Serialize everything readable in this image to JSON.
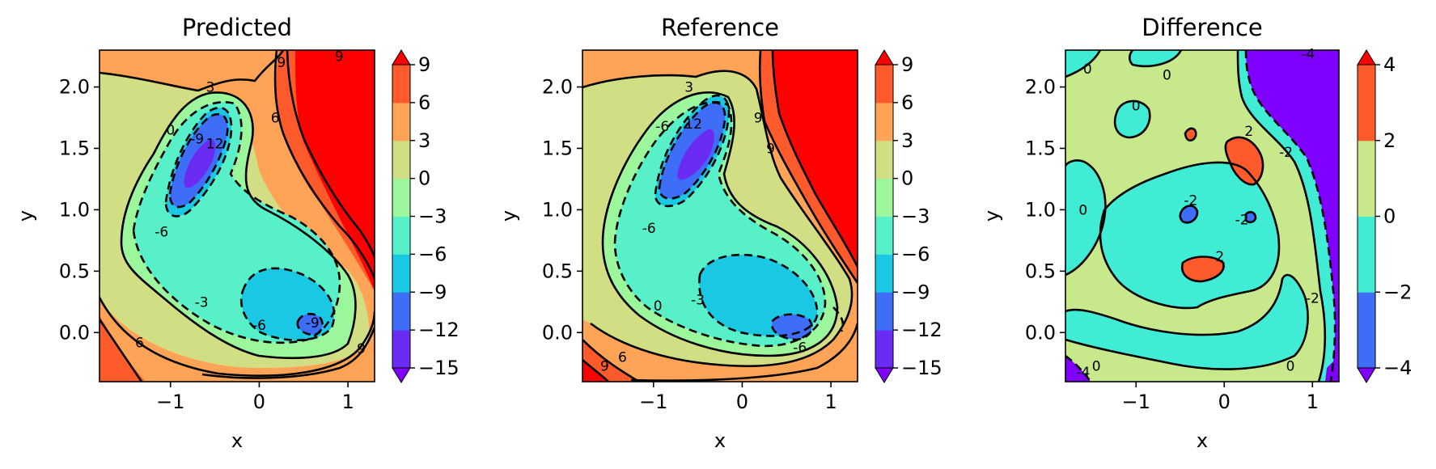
{
  "chart_data": [
    {
      "type": "contour",
      "title": "Predicted",
      "xlabel": "x",
      "ylabel": "y",
      "xlim": [
        -1.8,
        1.3
      ],
      "ylim": [
        -0.4,
        2.3
      ],
      "xticks": [
        -1,
        0,
        1
      ],
      "yticks": [
        0.0,
        0.5,
        1.0,
        1.5,
        2.0
      ],
      "xtick_labels": [
        "−1",
        "0",
        "1"
      ],
      "ytick_labels": [
        "0.0",
        "0.5",
        "1.0",
        "1.5",
        "2.0"
      ],
      "colorbar": {
        "levels": [
          -15,
          -12,
          -9,
          -6,
          -3,
          0,
          3,
          6,
          9
        ],
        "tick_labels": [
          "−15",
          "−12",
          "−9",
          "−6",
          "−3",
          "0",
          "3",
          "6",
          "9"
        ],
        "colors": [
          "#6a2cf3",
          "#3e6df8",
          "#1ac8e4",
          "#57f0c8",
          "#9cf79c",
          "#d2de84",
          "#ffa456",
          "#ff5a2c"
        ],
        "extend": "both"
      },
      "contour_labels": [
        {
          "text": "9",
          "x": 0.25,
          "y": 2.2
        },
        {
          "text": "9",
          "x": 0.9,
          "y": 2.25
        },
        {
          "text": "3",
          "x": -0.55,
          "y": 2.0
        },
        {
          "text": "6",
          "x": 0.18,
          "y": 1.75
        },
        {
          "text": "0",
          "x": -1.0,
          "y": 1.65
        },
        {
          "text": "-9",
          "x": -0.7,
          "y": 1.58
        },
        {
          "text": "12",
          "x": -0.5,
          "y": 1.54
        },
        {
          "text": "-6",
          "x": -1.1,
          "y": 0.82
        },
        {
          "text": "-3",
          "x": -0.65,
          "y": 0.25
        },
        {
          "text": "-6",
          "x": 0.0,
          "y": 0.06
        },
        {
          "text": "-9",
          "x": 0.6,
          "y": 0.08
        },
        {
          "text": "6",
          "x": -1.35,
          "y": -0.08
        },
        {
          "text": "9",
          "x": 1.15,
          "y": -0.13
        }
      ]
    },
    {
      "type": "contour",
      "title": "Reference",
      "xlabel": "x",
      "ylabel": "y",
      "xlim": [
        -1.8,
        1.3
      ],
      "ylim": [
        -0.4,
        2.3
      ],
      "xticks": [
        -1,
        0,
        1
      ],
      "yticks": [
        0.0,
        0.5,
        1.0,
        1.5,
        2.0
      ],
      "xtick_labels": [
        "−1",
        "0",
        "1"
      ],
      "ytick_labels": [
        "0.0",
        "0.5",
        "1.0",
        "1.5",
        "2.0"
      ],
      "colorbar": {
        "levels": [
          -15,
          -12,
          -9,
          -6,
          -3,
          0,
          3,
          6,
          9
        ],
        "tick_labels": [
          "−15",
          "−12",
          "−9",
          "−6",
          "−3",
          "0",
          "3",
          "6",
          "9"
        ],
        "colors": [
          "#6a2cf3",
          "#3e6df8",
          "#1ac8e4",
          "#57f0c8",
          "#9cf79c",
          "#d2de84",
          "#ffa456",
          "#ff5a2c"
        ],
        "extend": "both"
      },
      "contour_labels": [
        {
          "text": "3",
          "x": -0.6,
          "y": 2.0
        },
        {
          "text": "9",
          "x": 0.18,
          "y": 1.75
        },
        {
          "text": "9",
          "x": 0.32,
          "y": 1.5
        },
        {
          "text": "-6",
          "x": -0.9,
          "y": 1.68
        },
        {
          "text": "12",
          "x": -0.55,
          "y": 1.7
        },
        {
          "text": "-6",
          "x": -1.05,
          "y": 0.85
        },
        {
          "text": "0",
          "x": -0.95,
          "y": 0.22
        },
        {
          "text": "-3",
          "x": -0.5,
          "y": 0.27
        },
        {
          "text": "-6",
          "x": 0.65,
          "y": -0.12
        },
        {
          "text": "6",
          "x": -1.35,
          "y": -0.2
        },
        {
          "text": "9",
          "x": -1.55,
          "y": -0.27
        }
      ]
    },
    {
      "type": "contour",
      "title": "Difference",
      "xlabel": "x",
      "ylabel": "y",
      "xlim": [
        -1.8,
        1.3
      ],
      "ylim": [
        -0.4,
        2.3
      ],
      "xticks": [
        -1,
        0,
        1
      ],
      "yticks": [
        0.0,
        0.5,
        1.0,
        1.5,
        2.0
      ],
      "xtick_labels": [
        "−1",
        "0",
        "1"
      ],
      "ytick_labels": [
        "0.0",
        "0.5",
        "1.0",
        "1.5",
        "2.0"
      ],
      "colorbar": {
        "levels": [
          -4,
          -2,
          0,
          2,
          4
        ],
        "tick_labels": [
          "−4",
          "−2",
          "0",
          "2",
          "4"
        ],
        "colors": [
          "#3e6df8",
          "#40ecd4",
          "#c8e88c",
          "#ff5a2c"
        ],
        "extend": "both"
      },
      "contour_labels": [
        {
          "text": "0",
          "x": -1.55,
          "y": 2.15
        },
        {
          "text": "0",
          "x": -0.65,
          "y": 2.1
        },
        {
          "text": "0",
          "x": -1.0,
          "y": 1.85
        },
        {
          "text": "-4",
          "x": 0.95,
          "y": 2.27
        },
        {
          "text": "2",
          "x": 0.28,
          "y": 1.64
        },
        {
          "text": "-2",
          "x": 0.7,
          "y": 1.47
        },
        {
          "text": "0",
          "x": -1.6,
          "y": 1.0
        },
        {
          "text": "-2",
          "x": -0.38,
          "y": 1.08
        },
        {
          "text": "-2",
          "x": 0.2,
          "y": 0.92
        },
        {
          "text": "2",
          "x": -0.05,
          "y": 0.62
        },
        {
          "text": "-2",
          "x": 1.0,
          "y": 0.28
        },
        {
          "text": "0",
          "x": -1.45,
          "y": -0.27
        },
        {
          "text": "-4",
          "x": -1.6,
          "y": -0.32
        },
        {
          "text": "0",
          "x": 0.75,
          "y": -0.27
        }
      ]
    }
  ]
}
